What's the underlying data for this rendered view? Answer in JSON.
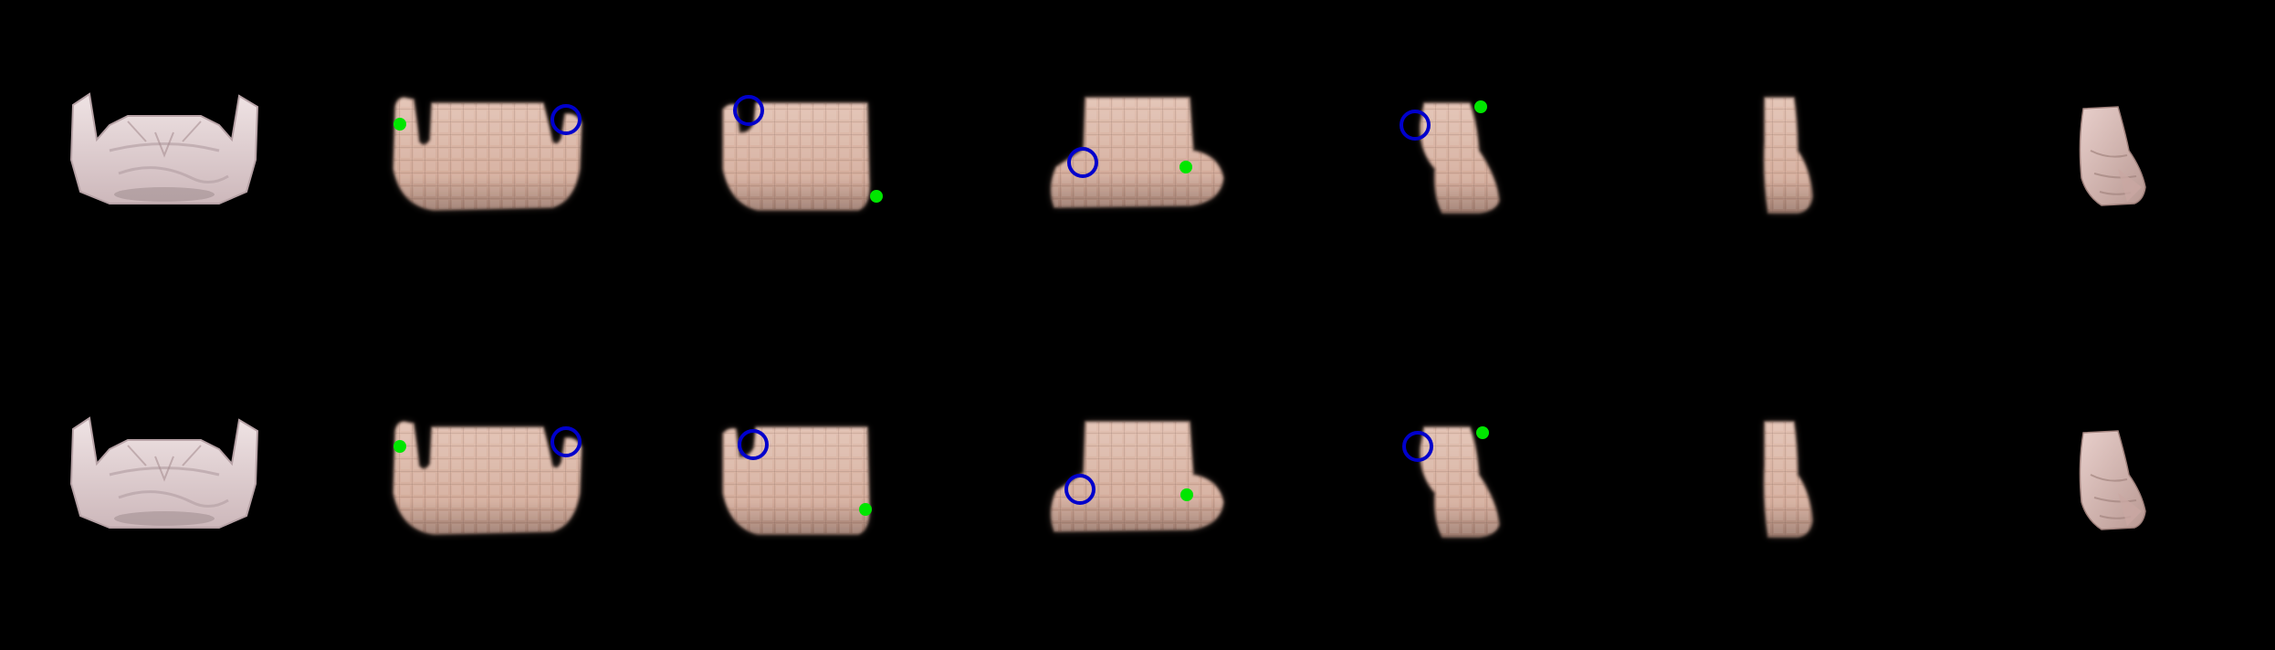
{
  "figure": {
    "background": "#000000",
    "rows": [
      {
        "id": "row-1",
        "frames": [
          {
            "kind": "photo",
            "shape": "shirt"
          },
          {
            "kind": "prediction",
            "shape": "u-top",
            "pick": true,
            "place": true
          },
          {
            "kind": "prediction",
            "shape": "l-shape",
            "pick": true,
            "place": true
          },
          {
            "kind": "prediction",
            "shape": "trapezoid",
            "pick": true,
            "place": true
          },
          {
            "kind": "prediction",
            "shape": "narrow",
            "pick": true,
            "place": true
          },
          {
            "kind": "prediction",
            "shape": "strip",
            "pick": false,
            "place": false
          },
          {
            "kind": "photo",
            "shape": "folded"
          }
        ]
      },
      {
        "id": "row-2",
        "frames": [
          {
            "kind": "photo",
            "shape": "shirt"
          },
          {
            "kind": "prediction",
            "shape": "u-top",
            "pick": true,
            "place": true
          },
          {
            "kind": "prediction",
            "shape": "l-shape",
            "pick": true,
            "place": true
          },
          {
            "kind": "prediction",
            "shape": "trapezoid",
            "pick": true,
            "place": true
          },
          {
            "kind": "prediction",
            "shape": "narrow",
            "pick": true,
            "place": true
          },
          {
            "kind": "prediction",
            "shape": "strip",
            "pick": false,
            "place": false
          },
          {
            "kind": "photo",
            "shape": "folded"
          }
        ]
      }
    ],
    "colors": {
      "cloth_photo": "#e6d6d7",
      "cloth_photo_shade": "#b7a2a6",
      "cloth_pred": "#d9b5a5",
      "cloth_pred_dark": "#8e6f63",
      "pick_marker": "#0000cc",
      "place_marker": "#00e600",
      "folded_cloth": "#d8bcb7"
    }
  }
}
